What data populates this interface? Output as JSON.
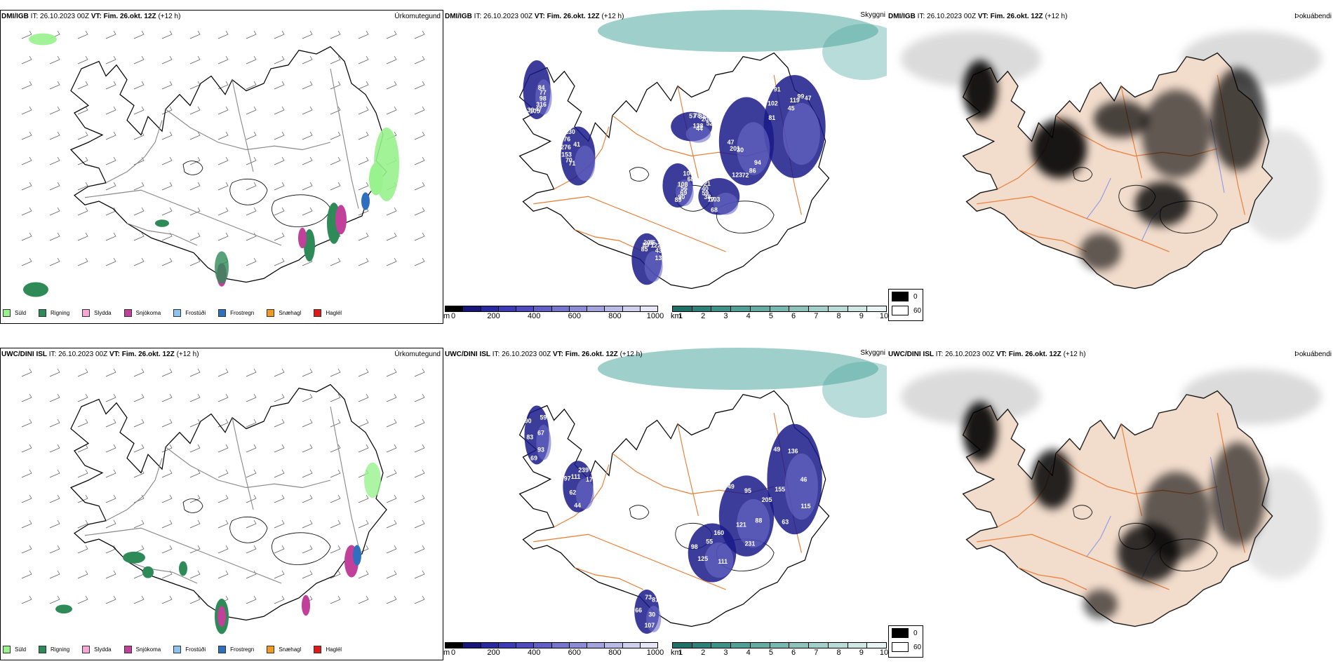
{
  "rows": [
    {
      "model": "DMI/IGB",
      "run": "IT: 26.10.2023 00Z",
      "vt_label": "VT: Fim. 26.okt. 12Z",
      "lead": "(+12 h)",
      "precip_title": "Úrkomutegund",
      "cloud_title": "Skyggni",
      "fog_title": "Þokuábendi",
      "visibility_labels": [
        "84",
        "71",
        "57",
        "94",
        "81",
        "104",
        "68",
        "85",
        "77",
        "70",
        "78",
        "86",
        "102",
        "68",
        "103",
        "89",
        "98",
        "153",
        "88",
        "72",
        "91",
        "108",
        "17",
        "205",
        "316",
        "276",
        "200",
        "123",
        "45",
        "56",
        "38",
        "66",
        "47",
        "76",
        "52",
        "30",
        "119",
        "69",
        "59",
        "122",
        "105",
        "130",
        "138",
        "201",
        "99",
        "90",
        "40",
        "43",
        "39",
        "41",
        "44",
        "47",
        "47",
        "89",
        "21",
        "133"
      ]
    },
    {
      "model": "UWC/DINI ISL",
      "run": "IT: 26.10.2023 00Z",
      "vt_label": "VT: Fim. 26.okt. 12Z",
      "lead": "(+12 h)",
      "precip_title": "Úrkomutegund",
      "cloud_title": "Skyggni",
      "fog_title": "Þokuábendi",
      "visibility_labels": [
        "67",
        "62",
        "95",
        "115",
        "98",
        "81",
        "69",
        "111",
        "88",
        "155",
        "160",
        "107",
        "90",
        "174",
        "121",
        "136",
        "111",
        "66",
        "59",
        "44",
        "49",
        "46",
        "125",
        "73",
        "93",
        "97",
        "205",
        "63",
        "55",
        "30",
        "83",
        "239",
        "231",
        "49"
      ]
    }
  ],
  "precip_legend": [
    {
      "label": "Súld",
      "color": "#98f28d"
    },
    {
      "label": "Rigning",
      "color": "#2e8b57"
    },
    {
      "label": "Slydda",
      "color": "#f5a8d8"
    },
    {
      "label": "Snjókoma",
      "color": "#c0409a"
    },
    {
      "label": "Frostúði",
      "color": "#8ec3f0"
    },
    {
      "label": "Frostregn",
      "color": "#2f6fc0"
    },
    {
      "label": "Snæhagl",
      "color": "#f09a20"
    },
    {
      "label": "Haglél",
      "color": "#e01818"
    }
  ],
  "cloudbase_scale": {
    "unit": "m",
    "ticks": [
      "0",
      "200",
      "400",
      "600",
      "800",
      "1000"
    ],
    "colors": [
      "#000000",
      "#15157a",
      "#2a2aa0",
      "#3b3bb5",
      "#4d4dc0",
      "#6060c8",
      "#7676cf",
      "#8c8cd6",
      "#a3a3de",
      "#babae6",
      "#d0d0ee",
      "#e6e6f6"
    ]
  },
  "visibility_scale": {
    "unit": "km",
    "ticks": [
      "1",
      "2",
      "3",
      "4",
      "5",
      "6",
      "7",
      "8",
      "9",
      "10"
    ],
    "colors": [
      "#1e7068",
      "#2e8078",
      "#3e9088",
      "#50a098",
      "#64aca4",
      "#78b8b0",
      "#8cc4bc",
      "#a2d0ca",
      "#b8dcd6",
      "#d0e8e4",
      "#e8f4f2"
    ]
  },
  "fog_legend": [
    {
      "label": "0",
      "color": "#000000"
    },
    {
      "label": "60",
      "color": "#ffffff"
    }
  ],
  "colors": {
    "land_fill": "#f2dccc",
    "road": "#e87a30",
    "river": "#7b8ef0",
    "coast": "#000000",
    "cloud_dark": "#1a1a8a",
    "cloud_light": "#6a6ac8",
    "vis_teal": "#4ea8a0"
  }
}
